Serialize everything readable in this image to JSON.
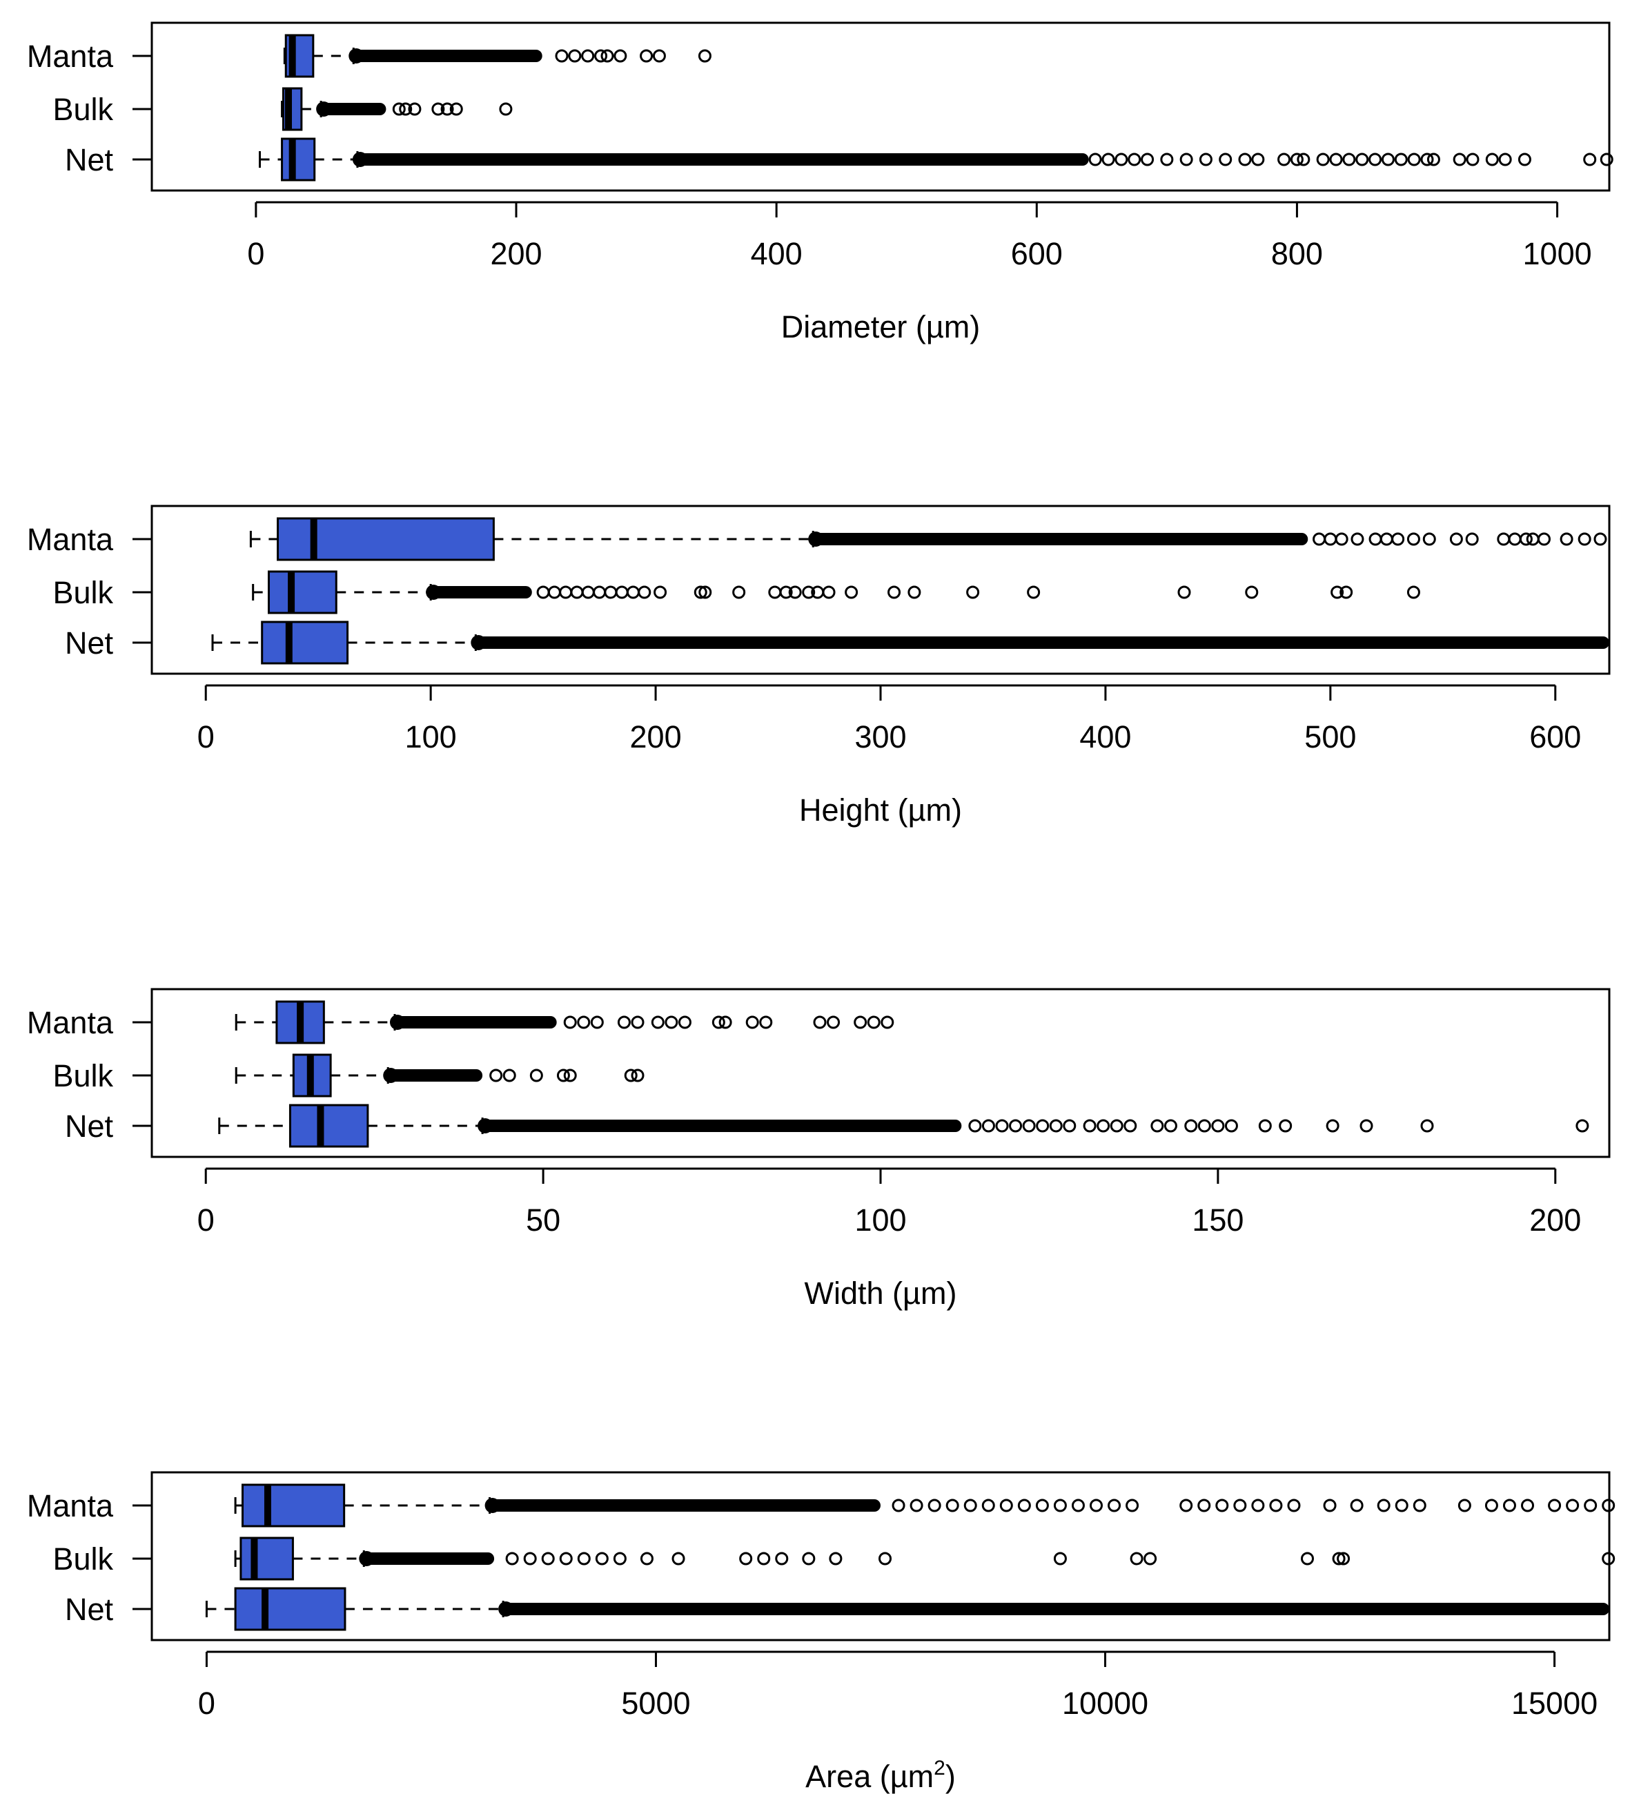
{
  "chart_data": [
    {
      "type": "boxplot",
      "orientation": "horizontal",
      "xlabel": "Diameter (µm)",
      "xlim": [
        -80,
        1040
      ],
      "xticks": [
        0,
        200,
        400,
        600,
        800,
        1000
      ],
      "categories": [
        "Manta",
        "Bulk",
        "Net"
      ],
      "colors": {
        "box": "#3a5bd1",
        "outline": "#000000"
      },
      "series": [
        {
          "name": "Manta",
          "whisker_low": 22,
          "q1": 23,
          "median": 28,
          "q3": 44,
          "whisker_high": 75,
          "outlier_min": 75,
          "outlier_max": 345,
          "outlier_dense_until": 220,
          "outliers": [
            235,
            245,
            255,
            265,
            270,
            280,
            300,
            310,
            345
          ]
        },
        {
          "name": "Bulk",
          "whisker_low": 20,
          "q1": 21,
          "median": 25,
          "q3": 35,
          "whisker_high": 50,
          "outlier_min": 50,
          "outlier_max": 192,
          "outlier_dense_until": 100,
          "outliers": [
            110,
            115,
            122,
            140,
            147,
            154,
            192
          ]
        },
        {
          "name": "Net",
          "whisker_low": 3,
          "q1": 20,
          "median": 28,
          "q3": 45,
          "whisker_high": 78,
          "outlier_min": 78,
          "outlier_max": 1040,
          "outlier_dense_until": 640,
          "outliers": [
            645,
            655,
            665,
            675,
            685,
            700,
            715,
            730,
            745,
            760,
            770,
            790,
            800,
            805,
            820,
            830,
            840,
            850,
            860,
            870,
            880,
            890,
            900,
            905,
            925,
            935,
            950,
            960,
            975,
            1025,
            1038
          ]
        }
      ]
    },
    {
      "type": "boxplot",
      "orientation": "horizontal",
      "xlabel": "Height (µm)",
      "xlim": [
        -24,
        624
      ],
      "xticks": [
        0,
        100,
        200,
        300,
        400,
        500,
        600
      ],
      "categories": [
        "Manta",
        "Bulk",
        "Net"
      ],
      "colors": {
        "box": "#3a5bd1",
        "outline": "#000000"
      },
      "series": [
        {
          "name": "Manta",
          "whisker_low": 20,
          "q1": 32,
          "median": 48,
          "q3": 128,
          "whisker_high": 270,
          "outlier_min": 270,
          "outlier_max": 624,
          "outlier_dense_until": 490,
          "outliers": [
            495,
            500,
            505,
            512,
            520,
            525,
            530,
            537,
            544,
            556,
            563,
            577,
            582,
            587,
            590,
            595,
            605,
            613,
            620
          ]
        },
        {
          "name": "Bulk",
          "whisker_low": 21,
          "q1": 28,
          "median": 38,
          "q3": 58,
          "whisker_high": 100,
          "outlier_min": 100,
          "outlier_max": 537,
          "outlier_dense_until": 145,
          "outliers": [
            150,
            155,
            160,
            165,
            170,
            175,
            180,
            185,
            190,
            195,
            202,
            220,
            222,
            237,
            253,
            258,
            262,
            268,
            272,
            277,
            287,
            306,
            315,
            341,
            368,
            435,
            465,
            503,
            507,
            537
          ]
        },
        {
          "name": "Net",
          "whisker_low": 3,
          "q1": 25,
          "median": 37,
          "q3": 63,
          "whisker_high": 120,
          "outlier_min": 120,
          "outlier_max": 624,
          "outlier_dense_until": 624,
          "outliers": []
        }
      ]
    },
    {
      "type": "boxplot",
      "orientation": "horizontal",
      "xlabel": "Width (µm)",
      "xlim": [
        -8,
        208
      ],
      "xticks": [
        0,
        50,
        100,
        150,
        200
      ],
      "categories": [
        "Manta",
        "Bulk",
        "Net"
      ],
      "colors": {
        "box": "#3a5bd1",
        "outline": "#000000"
      },
      "series": [
        {
          "name": "Manta",
          "whisker_low": 4.5,
          "q1": 10.5,
          "median": 14,
          "q3": 17.5,
          "whisker_high": 28,
          "outlier_min": 28,
          "outlier_max": 101,
          "outlier_dense_until": 52,
          "outliers": [
            54,
            56,
            58,
            62,
            64,
            67,
            69,
            71,
            76,
            77,
            81,
            83,
            91,
            93,
            97,
            99,
            101
          ]
        },
        {
          "name": "Bulk",
          "whisker_low": 4.5,
          "q1": 13,
          "median": 15.5,
          "q3": 18.5,
          "whisker_high": 27,
          "outlier_min": 27,
          "outlier_max": 64,
          "outlier_dense_until": 41,
          "outliers": [
            43,
            45,
            49,
            53,
            54,
            63,
            64
          ]
        },
        {
          "name": "Net",
          "whisker_low": 2,
          "q1": 12.5,
          "median": 17,
          "q3": 24,
          "whisker_high": 41,
          "outlier_min": 41,
          "outlier_max": 204,
          "outlier_dense_until": 112,
          "outliers": [
            114,
            116,
            118,
            120,
            122,
            124,
            126,
            128,
            131,
            133,
            135,
            137,
            141,
            143,
            146,
            148,
            150,
            152,
            157,
            160,
            167,
            172,
            181,
            204
          ]
        }
      ]
    },
    {
      "type": "boxplot",
      "orientation": "horizontal",
      "xlabel": "Area (µm",
      "xlabel_superscript": "2",
      "xlabel_suffix": ")",
      "xlim": [
        -610,
        15610
      ],
      "xticks": [
        0,
        5000,
        10000,
        15000
      ],
      "categories": [
        "Manta",
        "Bulk",
        "Net"
      ],
      "colors": {
        "box": "#3a5bd1",
        "outline": "#000000"
      },
      "series": [
        {
          "name": "Manta",
          "whisker_low": 320,
          "q1": 400,
          "median": 680,
          "q3": 1530,
          "whisker_high": 3150,
          "outlier_min": 3150,
          "outlier_max": 15610,
          "outlier_dense_until": 7500,
          "outliers": [
            7700,
            7900,
            8100,
            8300,
            8500,
            8700,
            8900,
            9100,
            9300,
            9500,
            9700,
            9900,
            10100,
            10300,
            10900,
            11100,
            11300,
            11500,
            11700,
            11900,
            12100,
            12500,
            12800,
            13100,
            13300,
            13500,
            14000,
            14300,
            14500,
            14700,
            15000,
            15200,
            15400,
            15600
          ]
        },
        {
          "name": "Bulk",
          "whisker_low": 320,
          "q1": 380,
          "median": 530,
          "q3": 960,
          "whisker_high": 1750,
          "outlier_min": 1750,
          "outlier_max": 15600,
          "outlier_dense_until": 3200,
          "outliers": [
            3400,
            3600,
            3800,
            4000,
            4200,
            4400,
            4600,
            4900,
            5250,
            6000,
            6200,
            6400,
            6700,
            7000,
            7550,
            9500,
            10350,
            10500,
            12250,
            12600,
            12650,
            15600
          ]
        },
        {
          "name": "Net",
          "whisker_low": 0,
          "q1": 320,
          "median": 650,
          "q3": 1540,
          "whisker_high": 3300,
          "outlier_min": 3300,
          "outlier_max": 15610,
          "outlier_dense_until": 15610,
          "outliers": []
        }
      ]
    }
  ]
}
